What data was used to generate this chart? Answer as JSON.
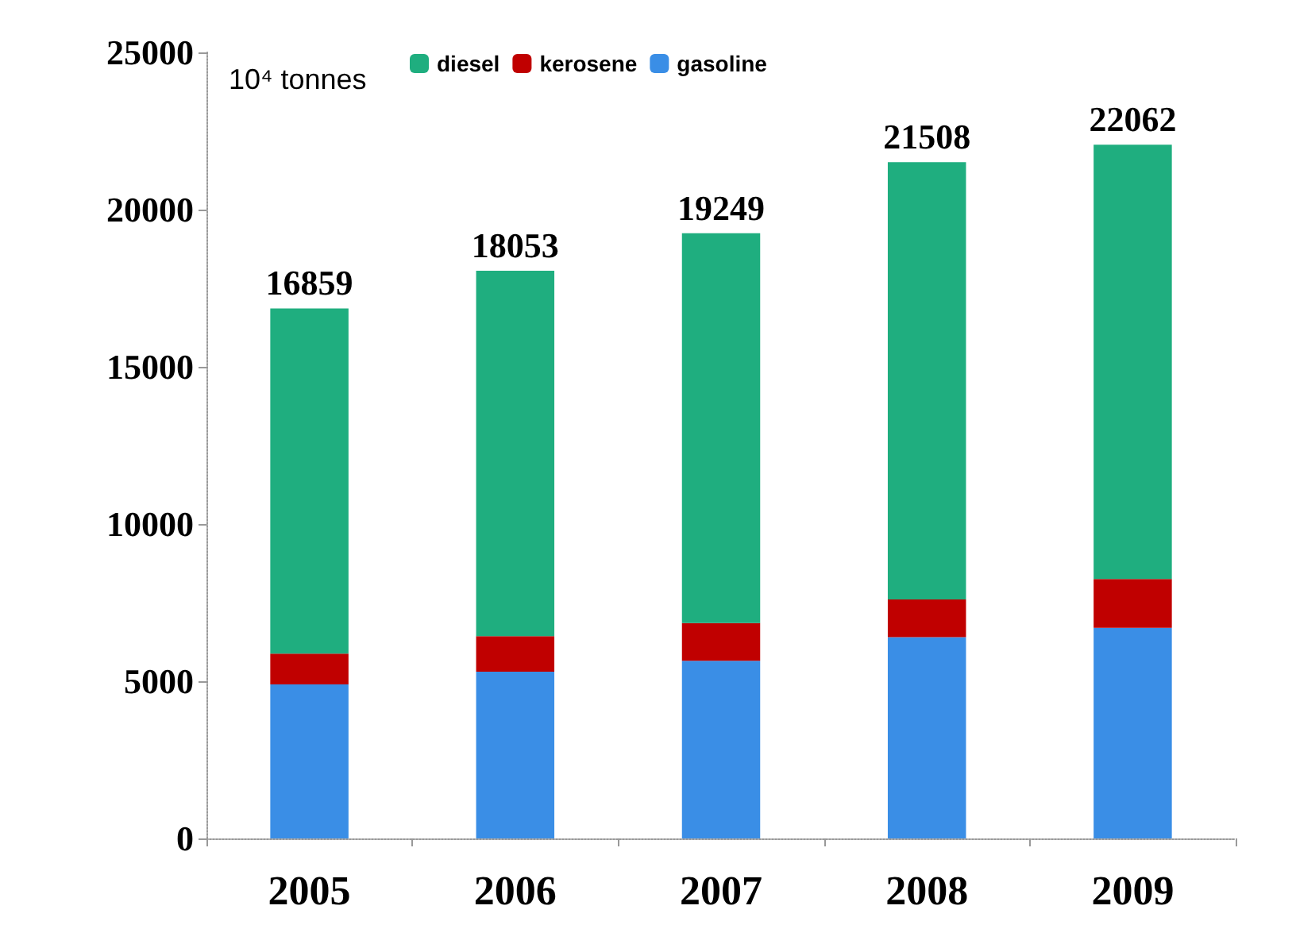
{
  "chart_data": {
    "type": "bar",
    "stacked": true,
    "ylabel": "10⁴ tonnes",
    "categories": [
      "2005",
      "2006",
      "2007",
      "2008",
      "2009"
    ],
    "series": [
      {
        "name": "gasoline",
        "color": "#3a8ee6",
        "values": [
          4900,
          5300,
          5650,
          6400,
          6700
        ]
      },
      {
        "name": "kerosene",
        "color": "#c00000",
        "values": [
          980,
          1130,
          1200,
          1200,
          1550
        ]
      },
      {
        "name": "diesel",
        "color": "#1fae7f",
        "values": [
          10979,
          11623,
          12399,
          13908,
          13812
        ]
      }
    ],
    "totals": [
      "16859",
      "18053",
      "19249",
      "21508",
      "22062"
    ],
    "ylim": [
      0,
      25000
    ],
    "yticks": [
      0,
      5000,
      10000,
      15000,
      20000,
      25000
    ],
    "grid": false,
    "legend": "top"
  }
}
